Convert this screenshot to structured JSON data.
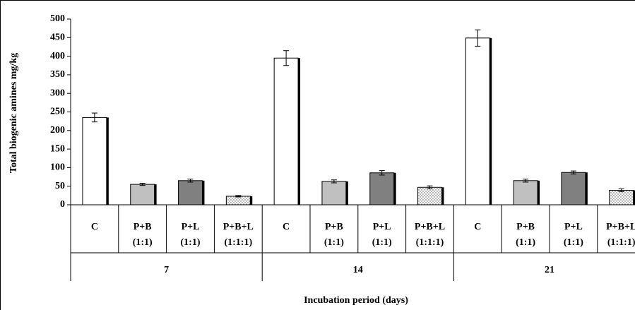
{
  "chart_data": {
    "type": "bar",
    "y_label": "Total biogenic amines mg/kg",
    "x_label": "Incubation period (days)",
    "categories": [
      [
        "C"
      ],
      [
        "P+B",
        "(1:1)"
      ],
      [
        "P+L",
        "(1:1)"
      ],
      [
        "P+B+L",
        "(1:1:1)"
      ],
      [
        "C"
      ],
      [
        "P+B",
        "(1:1)"
      ],
      [
        "P+L",
        "(1:1)"
      ],
      [
        "P+B+L",
        "(1:1:1)"
      ],
      [
        "C"
      ],
      [
        "P+B",
        "(1:1)"
      ],
      [
        "P+L",
        "(1:1)"
      ],
      [
        "P+B+L",
        "(1:1:1)"
      ]
    ],
    "groups": [
      "7",
      "14",
      "21"
    ],
    "values": [
      235,
      55,
      65,
      23,
      395,
      63,
      86,
      47,
      449,
      65,
      87,
      39
    ],
    "errors": [
      12,
      3,
      4,
      2,
      20,
      4,
      6,
      4,
      22,
      4,
      4,
      4
    ],
    "fills": [
      "#ffffff",
      "#c0c0c0",
      "#808080",
      "dots"
    ],
    "ylim": [
      0,
      500
    ],
    "yticks": [
      0,
      50,
      100,
      150,
      200,
      250,
      300,
      350,
      400,
      450,
      500
    ]
  }
}
